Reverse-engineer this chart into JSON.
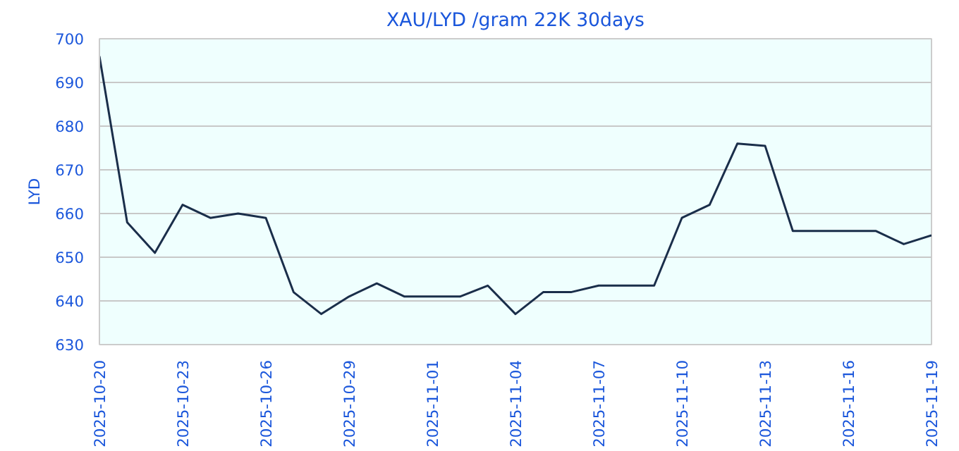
{
  "chart_data": {
    "type": "line",
    "title": "XAU/LYD /gram 22K 30days",
    "ylabel": "LYD",
    "x": [
      "2025-10-20",
      "2025-10-21",
      "2025-10-22",
      "2025-10-23",
      "2025-10-24",
      "2025-10-25",
      "2025-10-26",
      "2025-10-27",
      "2025-10-28",
      "2025-10-29",
      "2025-10-30",
      "2025-10-31",
      "2025-11-01",
      "2025-11-02",
      "2025-11-03",
      "2025-11-04",
      "2025-11-05",
      "2025-11-06",
      "2025-11-07",
      "2025-11-08",
      "2025-11-09",
      "2025-11-10",
      "2025-11-11",
      "2025-11-12",
      "2025-11-13",
      "2025-11-14",
      "2025-11-15",
      "2025-11-16",
      "2025-11-17",
      "2025-11-18",
      "2025-11-19"
    ],
    "series": [
      {
        "color": "#1a2e4a",
        "values": [
          696,
          658,
          651,
          662,
          659,
          660,
          659,
          642,
          637,
          641,
          644,
          641,
          641,
          641,
          643.5,
          637,
          642,
          642,
          643.5,
          643.5,
          643.5,
          659,
          662,
          676,
          675.5,
          656,
          656,
          656,
          656,
          653,
          655
        ]
      }
    ],
    "xlim": [
      "2025-10-20",
      "2025-11-19"
    ],
    "xticks": [
      "2025-10-20",
      "2025-10-23",
      "2025-10-26",
      "2025-10-29",
      "2025-11-01",
      "2025-11-04",
      "2025-11-07",
      "2025-11-10",
      "2025-11-13",
      "2025-11-16",
      "2025-11-19"
    ],
    "ylim": [
      630,
      700
    ],
    "yticks": [
      630,
      640,
      650,
      660,
      670,
      680,
      690,
      700
    ],
    "grid": "y",
    "line_style": "solid"
  }
}
